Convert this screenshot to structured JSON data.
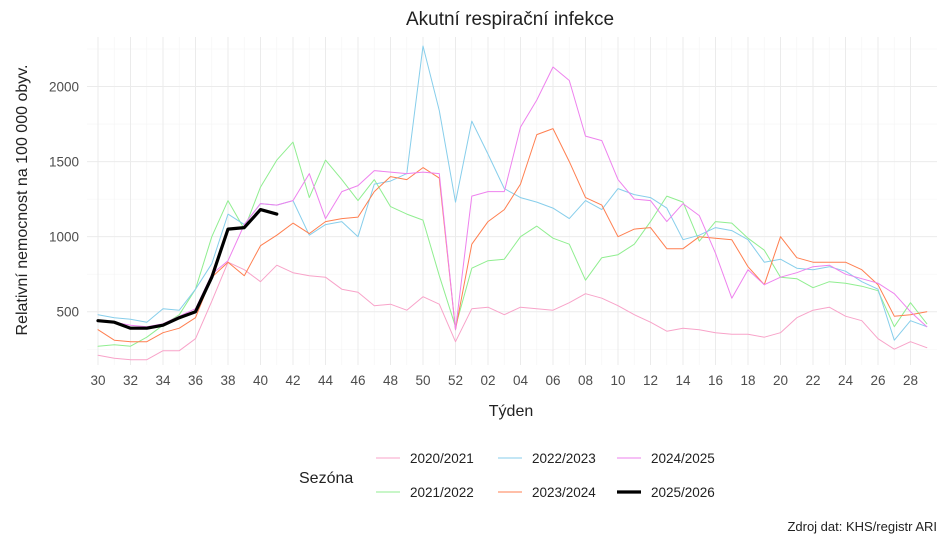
{
  "chart_data": {
    "type": "line",
    "title": "Akutní respirační infekce",
    "xlabel": "Týden",
    "ylabel": "Relativní nemocnost na 100 000 obyv.",
    "legend_title": "Sezóna",
    "legend_position": "bottom",
    "caption": "Zdroj dat: KHS/registr ARI",
    "grid": true,
    "x_weeks": [
      "30",
      "31",
      "32",
      "33",
      "34",
      "35",
      "36",
      "37",
      "38",
      "39",
      "40",
      "41",
      "42",
      "43",
      "44",
      "45",
      "46",
      "47",
      "48",
      "49",
      "50",
      "51",
      "52",
      "01",
      "02",
      "03",
      "04",
      "05",
      "06",
      "07",
      "08",
      "09",
      "10",
      "11",
      "12",
      "13",
      "14",
      "15",
      "16",
      "17",
      "18",
      "19",
      "20",
      "21",
      "22",
      "23",
      "24",
      "25",
      "26",
      "27",
      "28",
      "29"
    ],
    "x_tick_labels": [
      "30",
      "32",
      "34",
      "36",
      "38",
      "40",
      "42",
      "44",
      "46",
      "48",
      "50",
      "52",
      "02",
      "04",
      "06",
      "08",
      "10",
      "12",
      "14",
      "16",
      "18",
      "20",
      "22",
      "24",
      "26",
      "28"
    ],
    "y_ticks": [
      500,
      1000,
      1500,
      2000
    ],
    "ylim": [
      145,
      2330
    ],
    "series": [
      {
        "name": "2020/2021",
        "color": "#F8A3C9",
        "width": 1,
        "values": [
          210,
          190,
          180,
          180,
          240,
          240,
          320,
          570,
          830,
          780,
          700,
          810,
          760,
          740,
          730,
          650,
          630,
          540,
          550,
          510,
          600,
          550,
          300,
          520,
          530,
          480,
          530,
          520,
          510,
          560,
          620,
          590,
          540,
          480,
          430,
          370,
          390,
          380,
          360,
          350,
          350,
          330,
          360,
          460,
          510,
          530,
          470,
          440,
          320,
          250,
          300,
          260
        ]
      },
      {
        "name": "2021/2022",
        "color": "#90EE90",
        "width": 1,
        "values": [
          270,
          280,
          270,
          330,
          410,
          480,
          650,
          1000,
          1240,
          1050,
          1330,
          1510,
          1630,
          1260,
          1510,
          1380,
          1240,
          1380,
          1200,
          1150,
          1110,
          740,
          400,
          790,
          840,
          850,
          1000,
          1070,
          990,
          950,
          710,
          860,
          880,
          950,
          1100,
          1270,
          1230,
          970,
          1100,
          1090,
          990,
          910,
          730,
          720,
          660,
          700,
          690,
          670,
          640,
          400,
          560,
          420
        ]
      },
      {
        "name": "2022/2023",
        "color": "#87CEEB",
        "width": 1,
        "values": [
          480,
          460,
          450,
          430,
          520,
          510,
          650,
          820,
          1150,
          1080,
          1220,
          1210,
          1240,
          1010,
          1080,
          1100,
          1000,
          1350,
          1370,
          1420,
          2270,
          1840,
          1230,
          1770,
          1550,
          1320,
          1260,
          1230,
          1190,
          1120,
          1240,
          1180,
          1320,
          1280,
          1260,
          1190,
          980,
          1010,
          1060,
          1040,
          980,
          830,
          850,
          790,
          780,
          800,
          770,
          700,
          650,
          310,
          440,
          400
        ]
      },
      {
        "name": "2023/2024",
        "color": "#FF7F50",
        "width": 1,
        "values": [
          380,
          310,
          300,
          300,
          360,
          390,
          460,
          730,
          830,
          740,
          940,
          1010,
          1090,
          1020,
          1100,
          1120,
          1130,
          1300,
          1400,
          1380,
          1460,
          1390,
          380,
          950,
          1100,
          1180,
          1350,
          1680,
          1720,
          1500,
          1260,
          1210,
          1000,
          1050,
          1060,
          920,
          920,
          1000,
          990,
          980,
          800,
          680,
          1000,
          860,
          830,
          830,
          830,
          780,
          680,
          470,
          480,
          500
        ]
      },
      {
        "name": "2024/2025",
        "color": "#EE82EE",
        "width": 1,
        "values": [
          440,
          430,
          410,
          400,
          420,
          470,
          520,
          750,
          840,
          1080,
          1220,
          1210,
          1240,
          1420,
          1120,
          1300,
          1340,
          1440,
          1430,
          1420,
          1430,
          1420,
          380,
          1270,
          1300,
          1300,
          1730,
          1910,
          2130,
          2040,
          1670,
          1640,
          1380,
          1250,
          1240,
          1100,
          1220,
          1140,
          890,
          590,
          780,
          680,
          730,
          760,
          800,
          810,
          750,
          720,
          690,
          620,
          500,
          400
        ]
      },
      {
        "name": "2025/2026",
        "color": "#000000",
        "width": 3.2,
        "values": [
          440,
          430,
          390,
          390,
          410,
          460,
          500,
          730,
          1050,
          1060,
          1180,
          1150
        ]
      }
    ]
  }
}
